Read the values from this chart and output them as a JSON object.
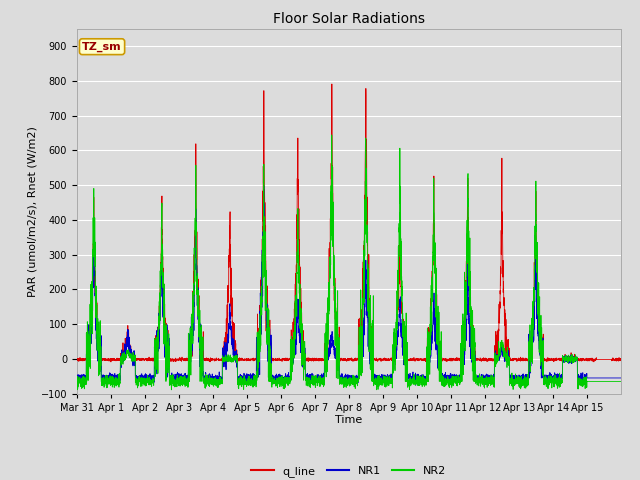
{
  "title": "Floor Solar Radiations",
  "xlabel": "Time",
  "ylabel": "PAR (umol/m2/s), Rnet (W/m2)",
  "ylim": [
    -100,
    950
  ],
  "yticks": [
    -100,
    0,
    100,
    200,
    300,
    400,
    500,
    600,
    700,
    800,
    900
  ],
  "xtick_labels": [
    "Mar 31",
    "Apr 1",
    "Apr 2",
    "Apr 3",
    "Apr 4",
    "Apr 5",
    "Apr 6",
    "Apr 7",
    "Apr 8",
    "Apr 9",
    "Apr 10",
    "Apr 11",
    "Apr 12",
    "Apr 13",
    "Apr 14",
    "Apr 15"
  ],
  "annotation_text": "TZ_sm",
  "annotation_bg": "#ffffcc",
  "annotation_border": "#cc9900",
  "line_colors": {
    "q_line": "#dd0000",
    "NR1": "#0000cc",
    "NR2": "#00cc00"
  },
  "plot_bg": "#dcdcdc",
  "grid_color": "#ffffff",
  "figsize": [
    6.4,
    4.8
  ],
  "dpi": 100,
  "day_peaks_q": [
    460,
    100,
    460,
    550,
    410,
    720,
    640,
    780,
    810,
    370,
    500,
    500,
    480,
    480,
    0
  ],
  "day_peaks_nr1": [
    380,
    90,
    310,
    420,
    150,
    520,
    175,
    80,
    265,
    175,
    175,
    210,
    30,
    330,
    0
  ],
  "day_peaks_nr2": [
    510,
    25,
    420,
    510,
    0,
    520,
    400,
    665,
    660,
    530,
    500,
    565,
    60,
    480,
    0
  ],
  "night_q": -2,
  "night_nr1": -55,
  "night_nr2": -65
}
